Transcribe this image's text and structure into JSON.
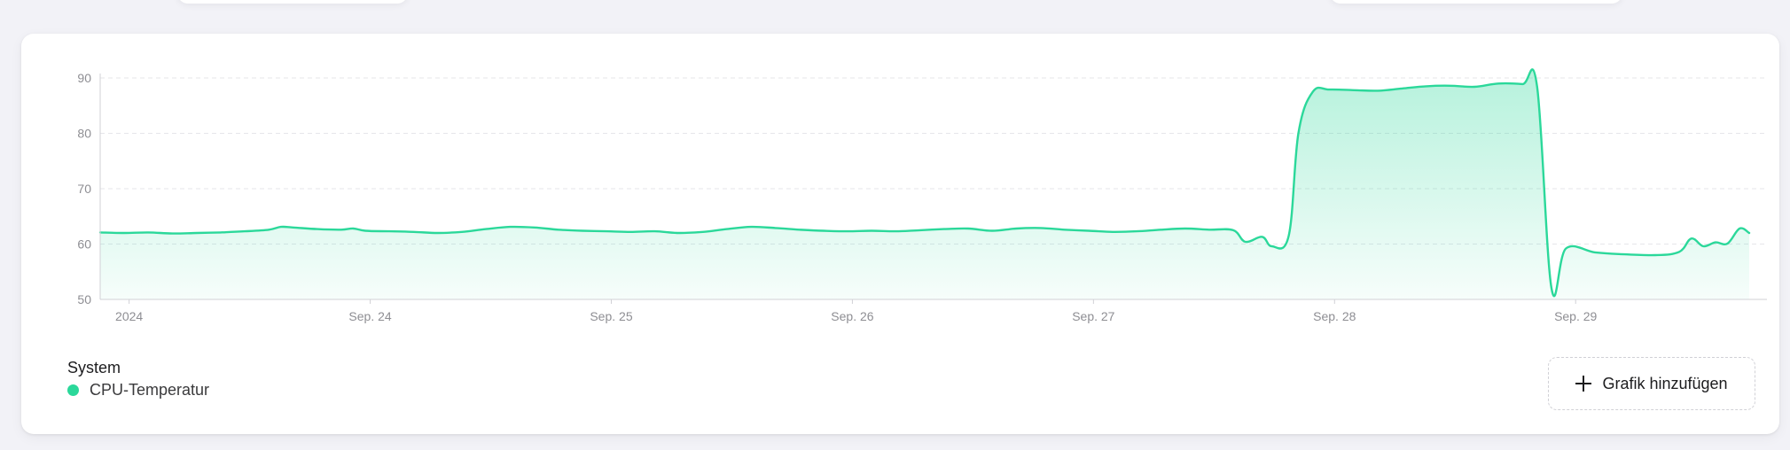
{
  "chart_data": {
    "type": "area",
    "title": "",
    "xlabel": "",
    "ylabel": "",
    "ylim": [
      50,
      90
    ],
    "y_ticks": [
      "90",
      "80",
      "70",
      "60",
      "50"
    ],
    "x_ticks": [
      "2024",
      "Sep. 24",
      "Sep. 25",
      "Sep. 26",
      "Sep. 27",
      "Sep. 28",
      "Sep. 29"
    ],
    "x_range_days": [
      23.0,
      29.84
    ],
    "grid": "horizontal dashed",
    "series": [
      {
        "name": "CPU-Temperatur",
        "color": "#2bd89a",
        "points": [
          [
            23.0,
            62.1
          ],
          [
            23.1,
            62.0
          ],
          [
            23.2,
            62.1
          ],
          [
            23.3,
            61.9
          ],
          [
            23.4,
            62.0
          ],
          [
            23.5,
            62.1
          ],
          [
            23.6,
            62.3
          ],
          [
            23.7,
            62.6
          ],
          [
            23.75,
            63.1
          ],
          [
            23.8,
            63.0
          ],
          [
            23.9,
            62.7
          ],
          [
            24.0,
            62.6
          ],
          [
            24.05,
            62.8
          ],
          [
            24.1,
            62.4
          ],
          [
            24.2,
            62.3
          ],
          [
            24.3,
            62.2
          ],
          [
            24.4,
            62.0
          ],
          [
            24.5,
            62.2
          ],
          [
            24.6,
            62.7
          ],
          [
            24.7,
            63.1
          ],
          [
            24.8,
            63.0
          ],
          [
            24.9,
            62.6
          ],
          [
            25.0,
            62.4
          ],
          [
            25.1,
            62.3
          ],
          [
            25.2,
            62.2
          ],
          [
            25.3,
            62.3
          ],
          [
            25.4,
            62.0
          ],
          [
            25.5,
            62.2
          ],
          [
            25.6,
            62.7
          ],
          [
            25.7,
            63.1
          ],
          [
            25.8,
            62.9
          ],
          [
            25.9,
            62.6
          ],
          [
            26.0,
            62.4
          ],
          [
            26.1,
            62.3
          ],
          [
            26.2,
            62.4
          ],
          [
            26.3,
            62.3
          ],
          [
            26.4,
            62.5
          ],
          [
            26.5,
            62.7
          ],
          [
            26.6,
            62.8
          ],
          [
            26.7,
            62.4
          ],
          [
            26.8,
            62.8
          ],
          [
            26.9,
            62.9
          ],
          [
            27.0,
            62.6
          ],
          [
            27.1,
            62.4
          ],
          [
            27.2,
            62.2
          ],
          [
            27.3,
            62.3
          ],
          [
            27.4,
            62.6
          ],
          [
            27.5,
            62.8
          ],
          [
            27.6,
            62.6
          ],
          [
            27.7,
            62.5
          ],
          [
            27.75,
            60.4
          ],
          [
            27.82,
            61.3
          ],
          [
            27.86,
            59.6
          ],
          [
            27.93,
            61.5
          ],
          [
            27.97,
            80.0
          ],
          [
            28.03,
            87.5
          ],
          [
            28.1,
            87.9
          ],
          [
            28.2,
            87.8
          ],
          [
            28.3,
            87.7
          ],
          [
            28.4,
            88.1
          ],
          [
            28.5,
            88.5
          ],
          [
            28.6,
            88.6
          ],
          [
            28.7,
            88.4
          ],
          [
            28.8,
            89.0
          ],
          [
            28.9,
            88.9
          ],
          [
            28.96,
            88.5
          ],
          [
            29.02,
            52.0
          ],
          [
            29.08,
            59.2
          ],
          [
            29.2,
            58.5
          ],
          [
            29.3,
            58.2
          ],
          [
            29.45,
            58.0
          ],
          [
            29.55,
            58.6
          ],
          [
            29.6,
            61.0
          ],
          [
            29.65,
            59.6
          ],
          [
            29.7,
            60.3
          ],
          [
            29.75,
            60.1
          ],
          [
            29.8,
            62.8
          ],
          [
            29.84,
            62.0
          ]
        ]
      }
    ]
  },
  "legend": {
    "group_title": "System",
    "items": [
      {
        "label": "CPU-Temperatur",
        "color": "#2bd89a"
      }
    ]
  },
  "actions": {
    "add_chart_label": "Grafik hinzufügen",
    "add_chart_icon": "plus-icon"
  }
}
